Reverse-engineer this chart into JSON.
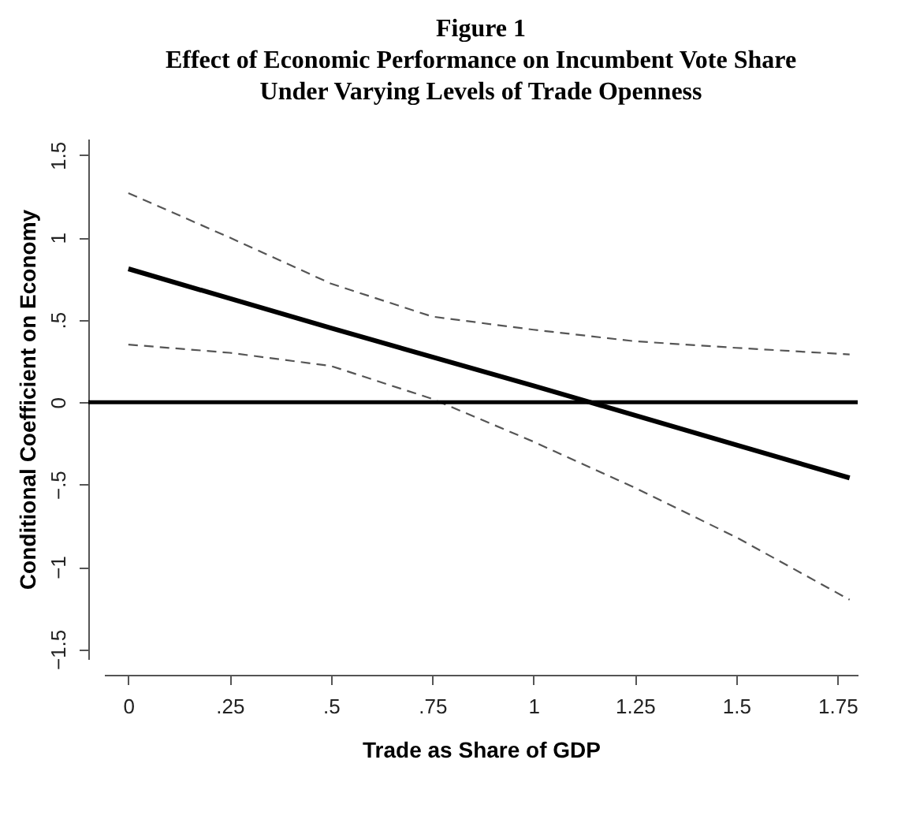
{
  "chart_data": {
    "type": "line",
    "title": "Figure 1\nEffect of Economic Performance on Incumbent Vote Share\nUnder Varying Levels of Trade Openness",
    "xlabel": "Trade as Share of GDP",
    "ylabel": "Conditional Coefficient on Economy",
    "series": [
      {
        "color": "#000000",
        "line_style": "solid",
        "x": [
          0,
          0.5,
          1,
          1.5,
          1.78
        ],
        "values": [
          0.81,
          0.45,
          0.1,
          -0.26,
          -0.46
        ]
      },
      {
        "color": "#555555",
        "line_style": "dashed",
        "x": [
          0,
          0.25,
          0.5,
          0.75,
          1,
          1.25,
          1.5,
          1.78
        ],
        "values": [
          1.27,
          1.0,
          0.72,
          0.52,
          0.44,
          0.37,
          0.33,
          0.29
        ]
      },
      {
        "color": "#555555",
        "line_style": "dashed",
        "x": [
          0,
          0.25,
          0.5,
          0.75,
          1,
          1.25,
          1.5,
          1.78
        ],
        "values": [
          0.35,
          0.3,
          0.22,
          0.02,
          -0.24,
          -0.52,
          -0.82,
          -1.2
        ]
      }
    ],
    "xlim": [
      -0.06,
      1.8
    ],
    "xticks": [
      0,
      {
        "value": 0.25,
        "label": ".25"
      },
      {
        "value": 0.5,
        "label": ".5"
      },
      {
        "value": 0.75,
        "label": ".75"
      },
      1,
      1.25,
      1.5,
      1.75
    ],
    "ylim": [
      -1.56,
      1.6
    ],
    "yticks": [
      {
        "value": -1.5,
        "label": "−1.5"
      },
      {
        "value": -1,
        "label": "−1"
      },
      {
        "value": -0.5,
        "label": "−.5"
      },
      0,
      {
        "value": 0.5,
        "label": ".5"
      },
      1,
      1.5
    ],
    "ref_lines": [
      {
        "axis": "y",
        "value": 0,
        "color": "#000000",
        "line_style": "solid"
      }
    ],
    "grid": false
  }
}
